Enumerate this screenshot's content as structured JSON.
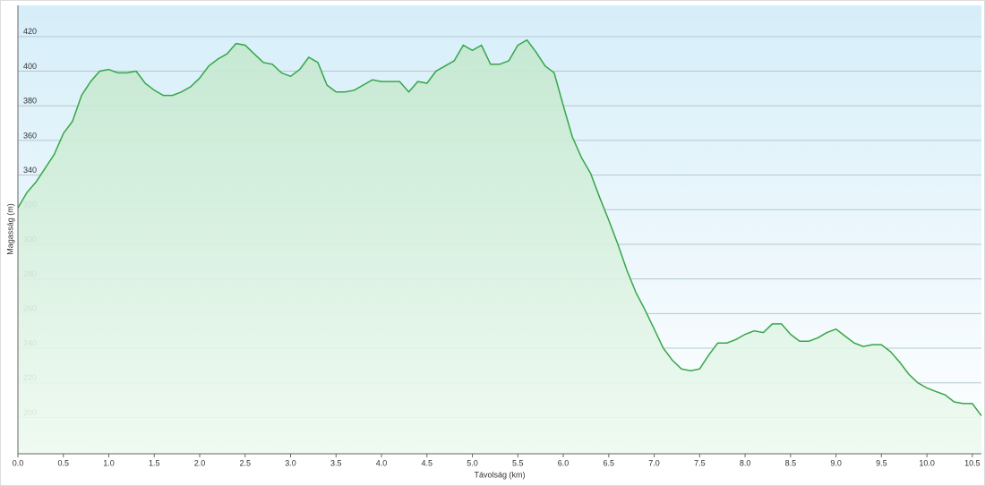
{
  "chart_data": {
    "type": "area",
    "x_label": "Távolság  (km)",
    "y_label": "Magasság (m)",
    "x": [
      0.0,
      0.1,
      0.2,
      0.3,
      0.4,
      0.5,
      0.6,
      0.7,
      0.8,
      0.9,
      1.0,
      1.1,
      1.2,
      1.3,
      1.4,
      1.5,
      1.6,
      1.7,
      1.8,
      1.9,
      2.0,
      2.1,
      2.2,
      2.3,
      2.4,
      2.5,
      2.6,
      2.7,
      2.8,
      2.9,
      3.0,
      3.1,
      3.2,
      3.3,
      3.4,
      3.5,
      3.6,
      3.7,
      3.8,
      3.9,
      4.0,
      4.1,
      4.2,
      4.3,
      4.4,
      4.5,
      4.6,
      4.7,
      4.8,
      4.9,
      5.0,
      5.1,
      5.2,
      5.3,
      5.4,
      5.5,
      5.6,
      5.7,
      5.8,
      5.9,
      6.0,
      6.1,
      6.2,
      6.3,
      6.4,
      6.5,
      6.6,
      6.7,
      6.8,
      6.9,
      7.0,
      7.1,
      7.2,
      7.3,
      7.4,
      7.5,
      7.6,
      7.7,
      7.8,
      7.9,
      8.0,
      8.1,
      8.2,
      8.3,
      8.4,
      8.5,
      8.6,
      8.7,
      8.8,
      8.9,
      9.0,
      9.1,
      9.2,
      9.3,
      9.4,
      9.5,
      9.6,
      9.7,
      9.8,
      9.9,
      10.0,
      10.1,
      10.2,
      10.3,
      10.4,
      10.5,
      10.6
    ],
    "series": [
      {
        "color": "#35a647",
        "values": [
          321,
          330,
          336,
          344,
          352,
          364,
          371,
          386,
          394,
          400,
          401,
          399,
          399,
          400,
          393,
          389,
          386,
          386,
          388,
          391,
          396,
          403,
          407,
          410,
          416,
          415,
          410,
          405,
          404,
          399,
          397,
          401,
          408,
          405,
          392,
          388,
          388,
          389,
          392,
          395,
          394,
          394,
          394,
          388,
          394,
          393,
          400,
          403,
          406,
          415,
          412,
          415,
          404,
          404,
          406,
          415,
          418,
          411,
          403,
          399,
          380,
          362,
          350,
          341,
          327,
          314,
          300,
          285,
          272,
          262,
          251,
          240,
          233,
          228,
          227,
          228,
          236,
          243,
          243,
          245,
          248,
          250,
          249,
          254,
          254,
          248,
          244,
          244,
          246,
          249,
          251,
          247,
          243,
          241,
          242,
          242,
          238,
          232,
          225,
          220,
          217,
          215,
          213,
          209,
          208,
          208,
          201
        ]
      }
    ],
    "xlim": [
      0,
      10.6
    ],
    "ylim": [
      179,
      438
    ],
    "xticks": [
      {
        "value": 0,
        "label": "0.0"
      },
      0.5,
      {
        "value": 1,
        "label": "1.0"
      },
      1.5,
      {
        "value": 2,
        "label": "2.0"
      },
      2.5,
      {
        "value": 3,
        "label": "3.0"
      },
      3.5,
      {
        "value": 4,
        "label": "4.0"
      },
      4.5,
      {
        "value": 5,
        "label": "5.0"
      },
      5.5,
      {
        "value": 6,
        "label": "6.0"
      },
      6.5,
      {
        "value": 7,
        "label": "7.0"
      },
      7.5,
      {
        "value": 8,
        "label": "8.0"
      },
      8.5,
      {
        "value": 9,
        "label": "9.0"
      },
      9.5,
      {
        "value": 10,
        "label": "10.0"
      },
      10.5
    ],
    "yticks": [
      200,
      220,
      240,
      260,
      280,
      300,
      320,
      340,
      360,
      380,
      400,
      420
    ],
    "grid": true
  }
}
